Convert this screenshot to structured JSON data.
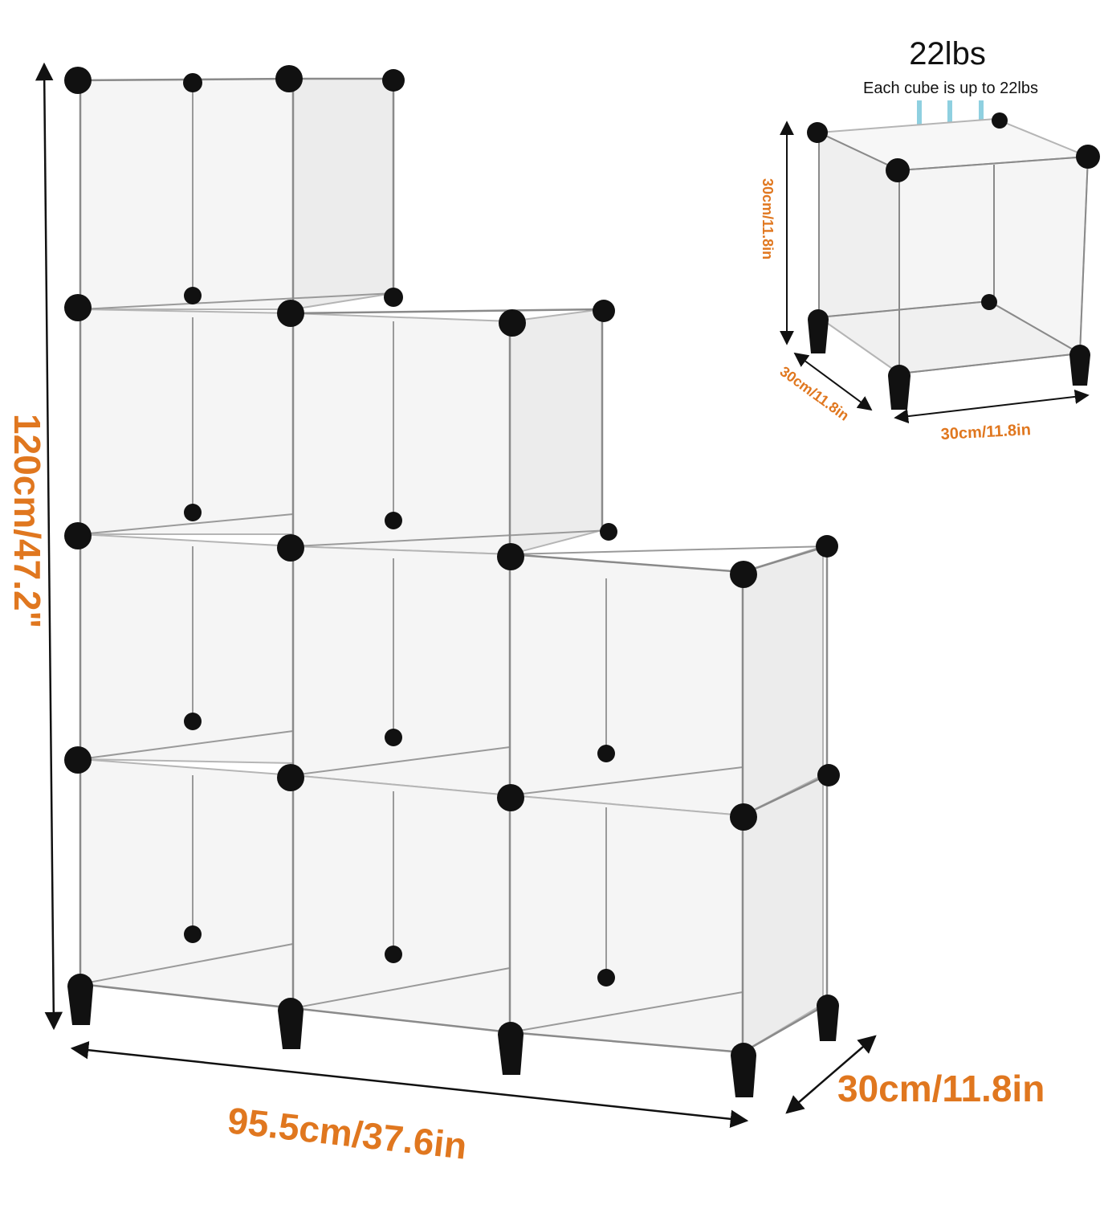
{
  "dimensions": {
    "height": "120cm/47.2\"",
    "width": "95.5cm/37.6in",
    "depth": "30cm/11.8in"
  },
  "single_cube": {
    "load_title": "22lbs",
    "load_caption": "Each cube is up to 22lbs",
    "height": "30cm/11.8in",
    "depth": "30cm/11.8in",
    "width": "30cm/11.8in"
  },
  "colors": {
    "dimension_text": "#e0771f",
    "frame_wire": "#9a9a9a",
    "connector": "#111111",
    "panel": "#f4f4f4",
    "load_arrow": "#8fd0e0"
  }
}
